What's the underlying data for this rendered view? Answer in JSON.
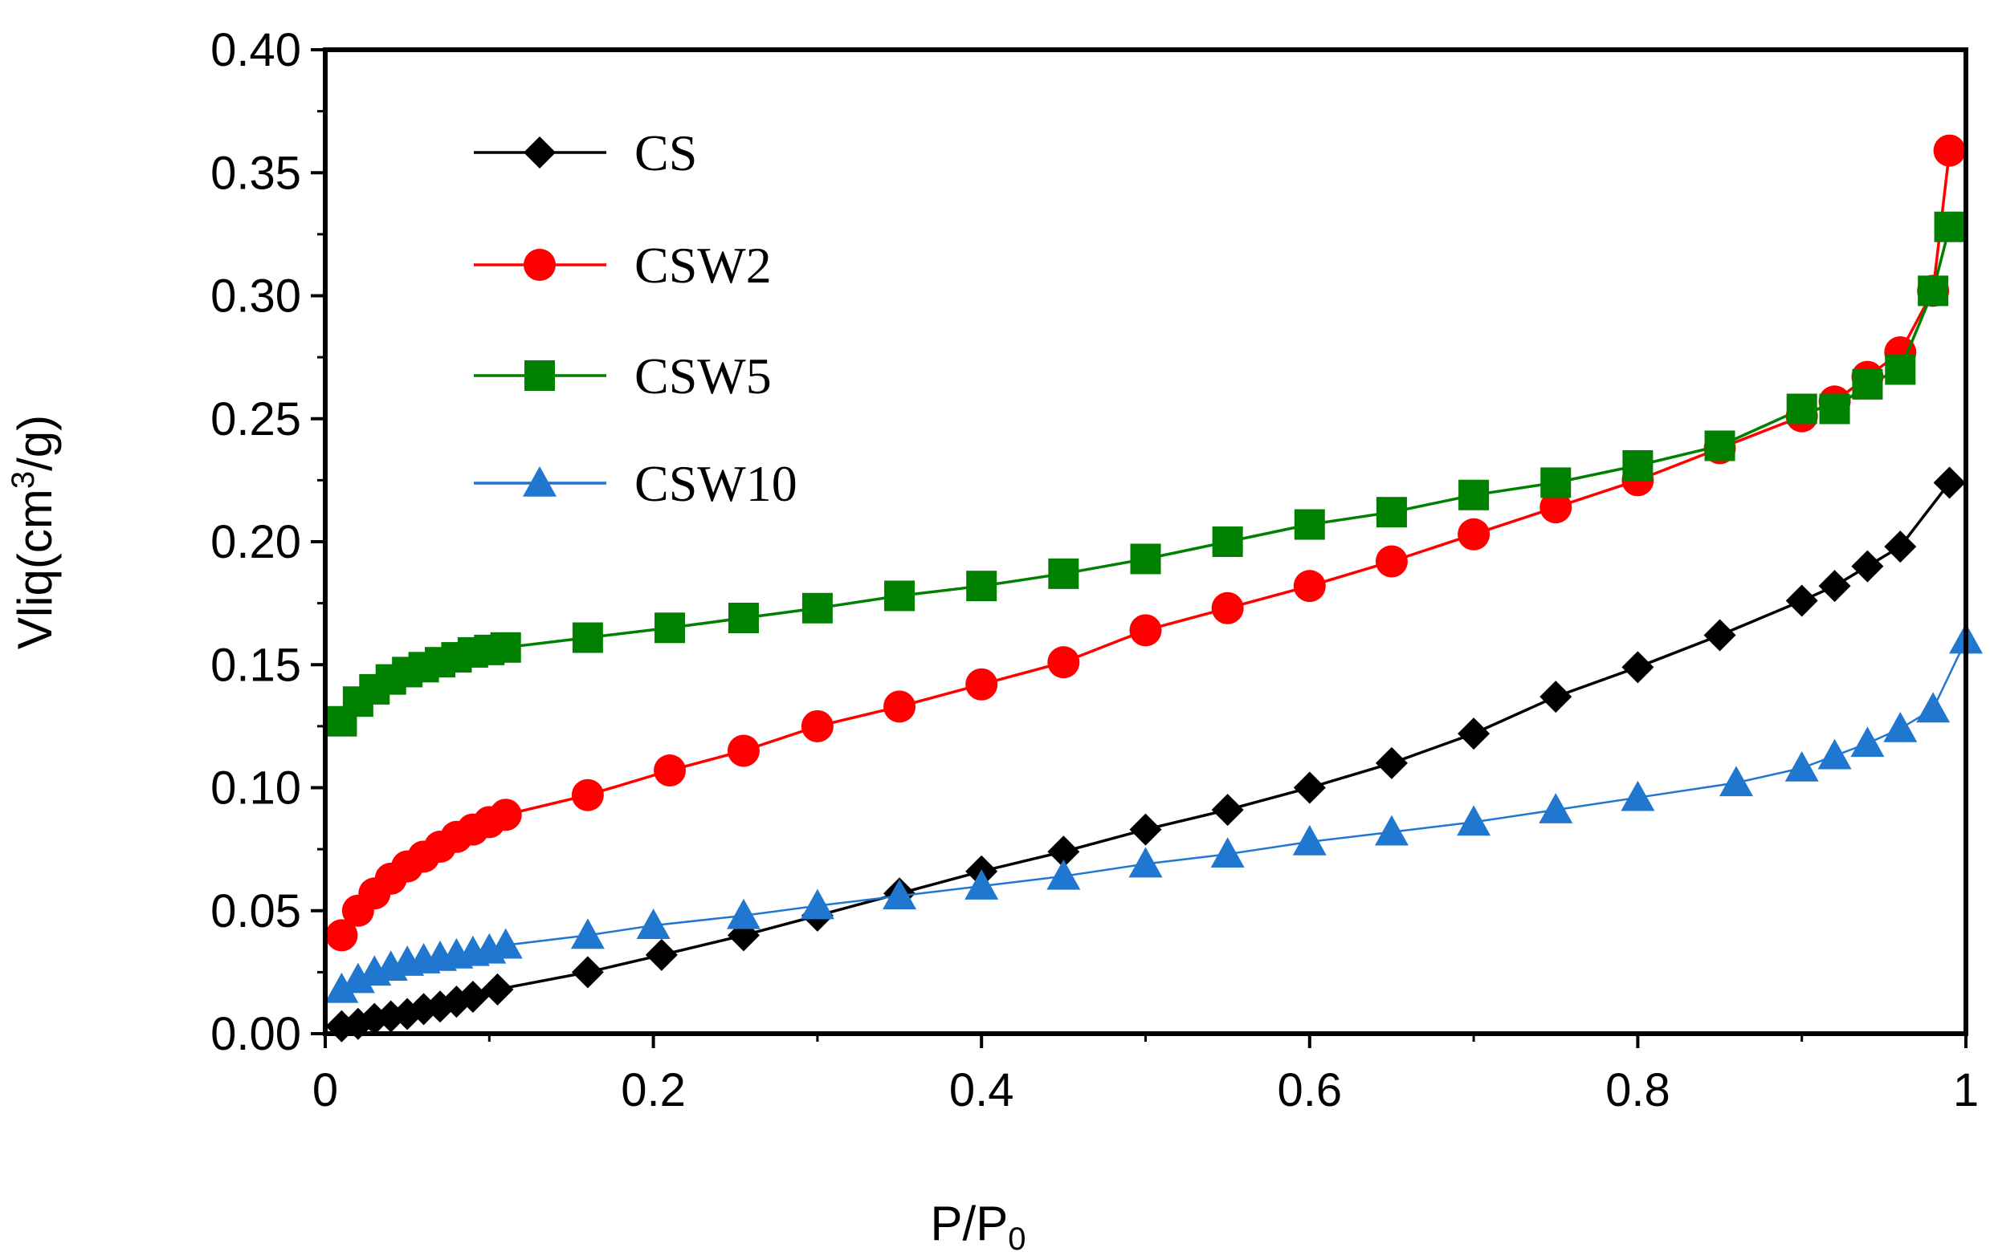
{
  "chart_data": {
    "type": "line",
    "title": "",
    "xlabel": "P/P",
    "xlabel_subscript": "0",
    "ylabel_prefix": "Vliq(cm",
    "ylabel_superscript": "3",
    "ylabel_suffix": "/g)",
    "xlim": [
      0,
      1
    ],
    "ylim": [
      0,
      0.4
    ],
    "x_ticks": [
      0,
      0.2,
      0.4,
      0.6,
      0.8,
      1
    ],
    "x_tick_labels": [
      "0",
      "0.2",
      "0.4",
      "0.6",
      "0.8",
      "1"
    ],
    "y_ticks": [
      0,
      0.05,
      0.1,
      0.15,
      0.2,
      0.25,
      0.3,
      0.35,
      0.4
    ],
    "y_tick_labels": [
      "0.00",
      "0.05",
      "0.10",
      "0.15",
      "0.20",
      "0.25",
      "0.30",
      "0.35",
      "0.40"
    ],
    "grid": false,
    "legend_position": "top-left",
    "series": [
      {
        "name": "CS",
        "color": "#000000",
        "marker": "diamond",
        "x": [
          0.01,
          0.02,
          0.03,
          0.04,
          0.05,
          0.06,
          0.07,
          0.08,
          0.09,
          0.105,
          0.16,
          0.205,
          0.255,
          0.3,
          0.35,
          0.4,
          0.45,
          0.5,
          0.55,
          0.6,
          0.65,
          0.7,
          0.75,
          0.8,
          0.85,
          0.9,
          0.92,
          0.94,
          0.96,
          0.99
        ],
        "y": [
          0.003,
          0.004,
          0.006,
          0.007,
          0.008,
          0.01,
          0.011,
          0.013,
          0.015,
          0.018,
          0.025,
          0.032,
          0.04,
          0.048,
          0.057,
          0.066,
          0.074,
          0.083,
          0.091,
          0.1,
          0.11,
          0.122,
          0.137,
          0.149,
          0.162,
          0.176,
          0.182,
          0.19,
          0.198,
          0.224
        ]
      },
      {
        "name": "CSW2",
        "color": "#ff0000",
        "marker": "circle",
        "x": [
          0.01,
          0.02,
          0.03,
          0.04,
          0.05,
          0.06,
          0.07,
          0.08,
          0.09,
          0.1,
          0.11,
          0.16,
          0.21,
          0.255,
          0.3,
          0.35,
          0.4,
          0.45,
          0.5,
          0.55,
          0.6,
          0.65,
          0.7,
          0.75,
          0.8,
          0.85,
          0.9,
          0.92,
          0.94,
          0.96,
          0.98,
          0.99
        ],
        "y": [
          0.04,
          0.05,
          0.057,
          0.063,
          0.068,
          0.072,
          0.076,
          0.08,
          0.083,
          0.086,
          0.089,
          0.097,
          0.107,
          0.115,
          0.125,
          0.133,
          0.142,
          0.151,
          0.164,
          0.173,
          0.182,
          0.192,
          0.203,
          0.214,
          0.225,
          0.238,
          0.251,
          0.257,
          0.267,
          0.277,
          0.302,
          0.359
        ]
      },
      {
        "name": "CSW5",
        "color": "#008000",
        "marker": "square",
        "x": [
          0.01,
          0.02,
          0.03,
          0.04,
          0.05,
          0.06,
          0.07,
          0.08,
          0.09,
          0.1,
          0.11,
          0.16,
          0.21,
          0.255,
          0.3,
          0.35,
          0.4,
          0.45,
          0.5,
          0.55,
          0.6,
          0.65,
          0.7,
          0.75,
          0.8,
          0.85,
          0.9,
          0.92,
          0.94,
          0.96,
          0.98,
          0.99
        ],
        "y": [
          0.127,
          0.135,
          0.14,
          0.144,
          0.147,
          0.149,
          0.151,
          0.153,
          0.155,
          0.156,
          0.157,
          0.161,
          0.165,
          0.169,
          0.173,
          0.178,
          0.182,
          0.187,
          0.193,
          0.2,
          0.207,
          0.212,
          0.219,
          0.224,
          0.231,
          0.239,
          0.254,
          0.254,
          0.264,
          0.27,
          0.302,
          0.328
        ]
      },
      {
        "name": "CSW10",
        "color": "#1f77d0",
        "marker": "triangle",
        "x": [
          0.01,
          0.02,
          0.03,
          0.04,
          0.05,
          0.06,
          0.07,
          0.08,
          0.09,
          0.1,
          0.11,
          0.16,
          0.2,
          0.255,
          0.3,
          0.35,
          0.4,
          0.45,
          0.5,
          0.55,
          0.6,
          0.65,
          0.7,
          0.75,
          0.8,
          0.86,
          0.9,
          0.92,
          0.94,
          0.96,
          0.98,
          1.0
        ],
        "y": [
          0.018,
          0.022,
          0.025,
          0.027,
          0.029,
          0.03,
          0.031,
          0.032,
          0.033,
          0.034,
          0.036,
          0.04,
          0.044,
          0.048,
          0.052,
          0.056,
          0.06,
          0.064,
          0.069,
          0.073,
          0.078,
          0.082,
          0.086,
          0.091,
          0.096,
          0.102,
          0.108,
          0.113,
          0.118,
          0.124,
          0.132,
          0.16
        ]
      }
    ]
  }
}
